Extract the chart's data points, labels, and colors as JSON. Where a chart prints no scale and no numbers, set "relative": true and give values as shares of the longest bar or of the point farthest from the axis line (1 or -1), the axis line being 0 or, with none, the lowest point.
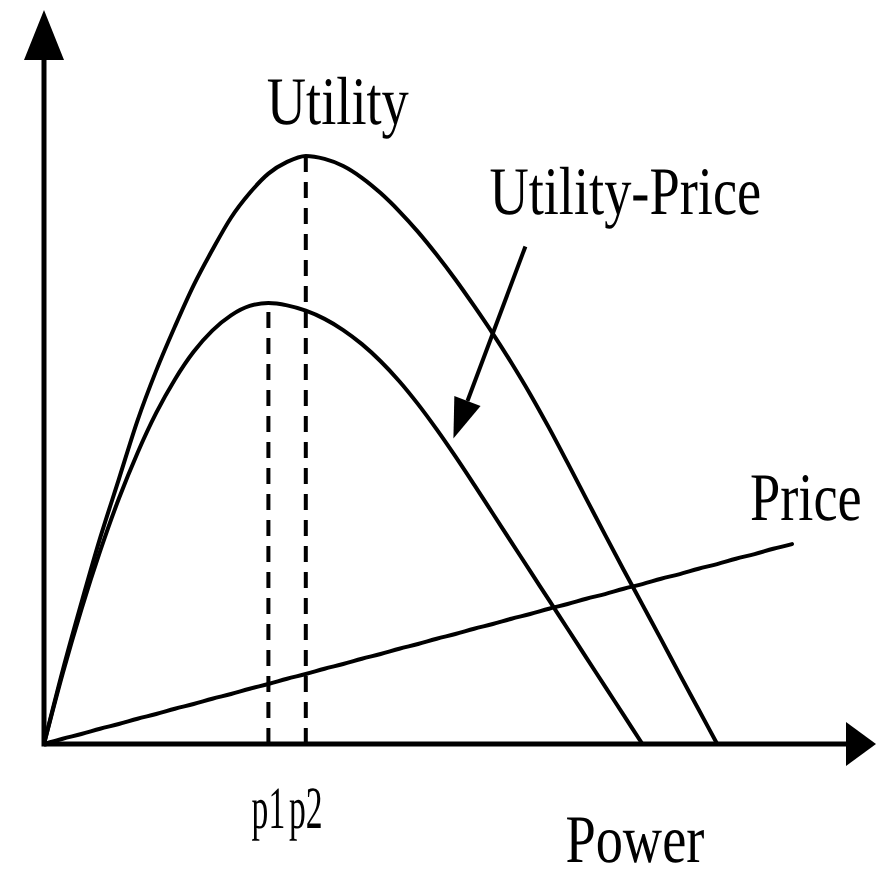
{
  "chart_data": {
    "type": "line",
    "xlabel": "Power",
    "relative": true,
    "categories": [
      null,
      null,
      null,
      null,
      null,
      null,
      null,
      null,
      null,
      null,
      null,
      null,
      "p1",
      null,
      "p2",
      null,
      null,
      null,
      null,
      null,
      null,
      null,
      null,
      null,
      null,
      null,
      null,
      null,
      null,
      null,
      null,
      null,
      null,
      null,
      null,
      null,
      null,
      null,
      null,
      null,
      null
    ],
    "series": [
      {
        "name": "Utility",
        "color": "#000000",
        "values": [
          0,
          0.125,
          0.24,
          0.35,
          0.45,
          0.55,
          0.635,
          0.71,
          0.78,
          0.84,
          0.895,
          0.937,
          0.97,
          0.99,
          1,
          0.995,
          0.983,
          0.963,
          0.937,
          0.906,
          0.871,
          0.832,
          0.79,
          0.745,
          0.698,
          0.648,
          0.595,
          0.538,
          0.478,
          0.417,
          0.356,
          0.296,
          0.237,
          0.178,
          0.118,
          0.059,
          0,
          null,
          null,
          null,
          null
        ]
      },
      {
        "name": "Utility-Price",
        "color": "#000000",
        "values": [
          0,
          0.12,
          0.229,
          0.328,
          0.417,
          0.495,
          0.563,
          0.62,
          0.667,
          0.703,
          0.729,
          0.745,
          0.75,
          0.746,
          0.737,
          0.723,
          0.704,
          0.68,
          0.651,
          0.617,
          0.578,
          0.535,
          0.489,
          0.441,
          0.392,
          0.343,
          0.294,
          0.245,
          0.196,
          0.147,
          0.098,
          0.049,
          0,
          null,
          null,
          null,
          null,
          null,
          null,
          null,
          null
        ]
      },
      {
        "name": "Price",
        "color": "#000000",
        "values": [
          0,
          0.009,
          0.017,
          0.026,
          0.034,
          0.043,
          0.051,
          0.06,
          0.068,
          0.077,
          0.085,
          0.094,
          0.102,
          0.111,
          0.119,
          0.128,
          0.136,
          0.145,
          0.153,
          0.162,
          0.17,
          0.179,
          0.187,
          0.196,
          0.204,
          0.213,
          0.221,
          0.23,
          0.238,
          0.247,
          0.255,
          0.264,
          0.272,
          0.281,
          0.289,
          0.298,
          0.306,
          0.315,
          0.323,
          0.332,
          0.34
        ]
      }
    ],
    "ref_lines": [
      {
        "axis": "x",
        "value": "p1",
        "line_style": "dashed",
        "color": "#000000"
      },
      {
        "axis": "x",
        "value": "p2",
        "line_style": "dashed",
        "color": "#000000"
      }
    ]
  }
}
